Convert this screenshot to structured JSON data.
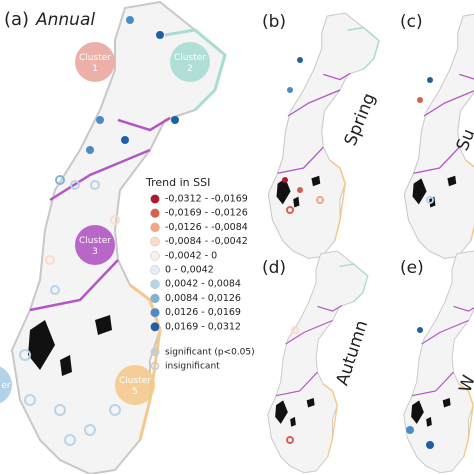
{
  "panels": [
    {
      "label": "(a)",
      "season": "Annual"
    },
    {
      "label": "(b)",
      "season": "Spring"
    },
    {
      "label": "(c)",
      "season": "Su"
    },
    {
      "label": "(d)",
      "season": "Autumn"
    },
    {
      "label": "(e)",
      "season": "W"
    }
  ],
  "clusters": [
    {
      "label": "Cluster\n1",
      "color": "#eba79f"
    },
    {
      "label": "Cluster\n2",
      "color": "#a9ddd4"
    },
    {
      "label": "Cluster\n3",
      "color": "#b356c4"
    },
    {
      "label": "er",
      "color": "#a9cde6"
    },
    {
      "label": "Cluster\n5",
      "color": "#f5c98c"
    }
  ],
  "legend": {
    "title": "Trend in SSI",
    "items": [
      {
        "label": "-0,0312 - -0,0169",
        "color": "#b2182b"
      },
      {
        "label": "-0,0169 - -0,0126",
        "color": "#d6604d"
      },
      {
        "label": "-0,0126 - -0,0084",
        "color": "#f4a582"
      },
      {
        "label": "-0,0084 - -0,0042",
        "color": "#fddbc7"
      },
      {
        "label": "-0,0042 - 0",
        "color": "#f7f0ee"
      },
      {
        "label": "0 - 0,0042",
        "color": "#e3eef6"
      },
      {
        "label": "0,0042 - 0,0084",
        "color": "#b7d5ea"
      },
      {
        "label": "0,0084 - 0,0126",
        "color": "#7fb2d9"
      },
      {
        "label": "0,0126 - 0,0169",
        "color": "#4a8cc4"
      },
      {
        "label": "0,0169 - 0,0312",
        "color": "#1f5fa6"
      }
    ],
    "significance": [
      "significant (p<0.05)",
      "insignificant"
    ]
  }
}
